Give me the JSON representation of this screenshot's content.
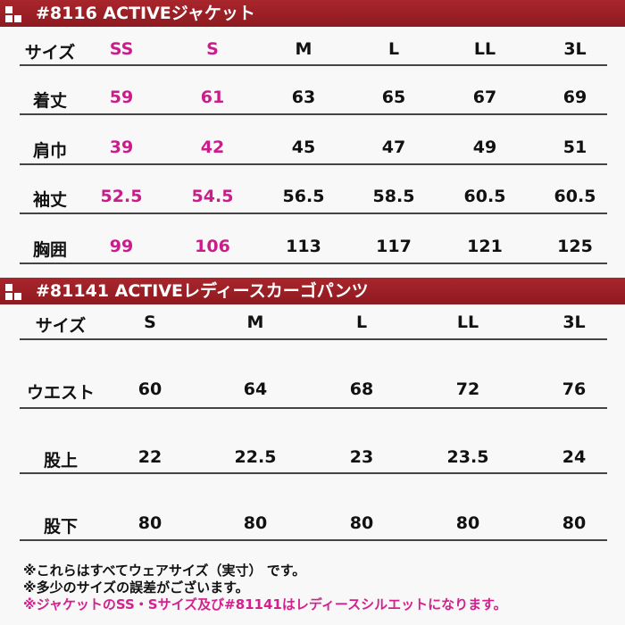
{
  "jacket": {
    "title": "#8116 ACTIVEジャケット",
    "headers": [
      "サイズ",
      "SS",
      "S",
      "M",
      "L",
      "LL",
      "3L"
    ],
    "rows": [
      [
        "着丈",
        "59",
        "61",
        "63",
        "65",
        "67",
        "69"
      ],
      [
        "肩巾",
        "39",
        "42",
        "45",
        "47",
        "49",
        "51"
      ],
      [
        "袖丈",
        "52.5",
        "54.5",
        "56.5",
        "58.5",
        "60.5",
        "60.5"
      ],
      [
        "胸囲",
        "99",
        "106",
        "113",
        "117",
        "121",
        "125"
      ]
    ]
  },
  "pants": {
    "title": "#81141 ACTIVEレディースカーゴパンツ",
    "headers": [
      "サイズ",
      "S",
      "M",
      "L",
      "LL",
      "3L"
    ],
    "rows": [
      [
        "ウエスト",
        "60",
        "64",
        "68",
        "72",
        "76"
      ],
      [
        "股上",
        "22",
        "22.5",
        "23",
        "23.5",
        "24"
      ],
      [
        "股下",
        "80",
        "80",
        "80",
        "80",
        "80"
      ]
    ]
  },
  "notes": [
    "※これらはすべてウェアサイズ（実寸） です。",
    "※多少のサイズの誤差がございます。",
    "※ジャケットのSS・Sサイズ及び#81141はレディースシルエットになります。"
  ],
  "colors": {
    "header_bar": "#9e1f25",
    "highlight": "#cc1b8a"
  }
}
